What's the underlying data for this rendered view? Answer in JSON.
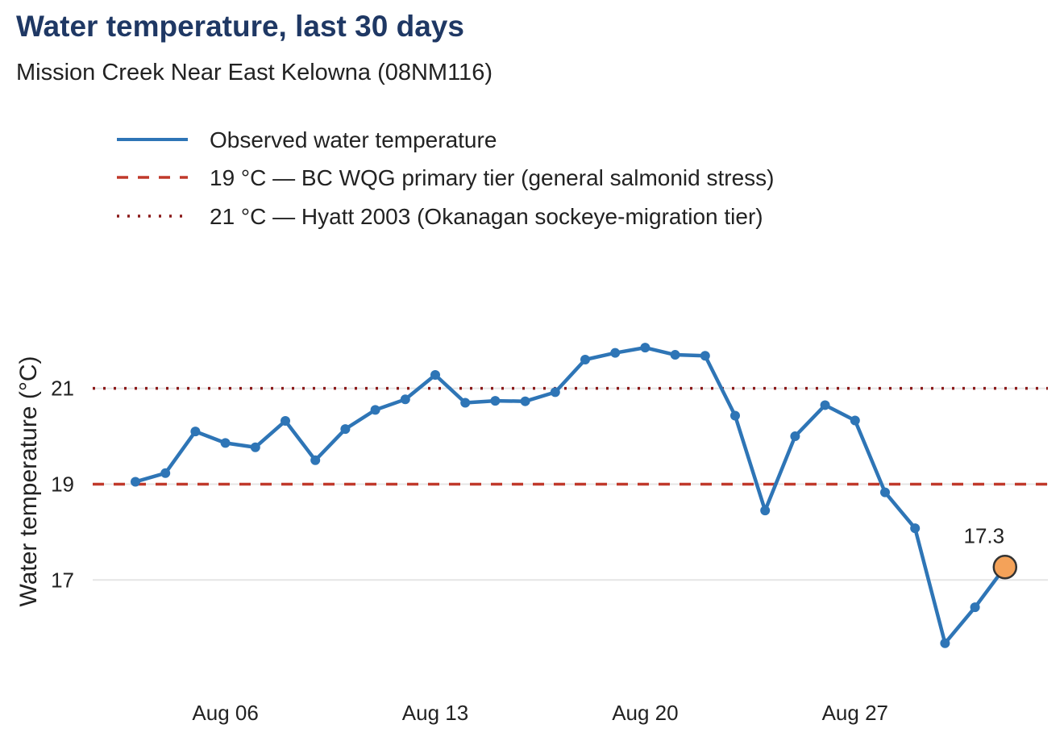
{
  "title": "Water temperature, last 30 days",
  "subtitle": "Mission Creek Near East Kelowna (08NM116)",
  "colors": {
    "title": "#1f3864",
    "series": "#2e75b6",
    "threshold_19": "#c0392b",
    "threshold_21": "#8b1a1a",
    "highlight_fill": "#f4a259",
    "grid": "#e6e6e6"
  },
  "chart_data": {
    "type": "line",
    "title": "Water temperature, last 30 days",
    "subtitle": "Mission Creek Near East Kelowna (08NM116)",
    "xlabel": "",
    "ylabel": "Water temperature (°C)",
    "ylim": [
      14.8,
      23.3
    ],
    "yticks": [
      17,
      19,
      21
    ],
    "xtick_labels": [
      "Aug 06",
      "Aug 13",
      "Aug 20",
      "Aug 27"
    ],
    "xtick_days": [
      6,
      13,
      20,
      27
    ],
    "x_days": [
      3,
      4,
      5,
      6,
      7,
      8,
      9,
      10,
      11,
      12,
      13,
      14,
      15,
      16,
      17,
      18,
      19,
      20,
      21,
      22,
      23,
      24,
      25,
      26,
      27,
      28,
      29,
      30,
      31,
      32
    ],
    "series": [
      {
        "name": "Observed water temperature",
        "values": [
          19.05,
          19.23,
          20.1,
          19.86,
          19.77,
          20.32,
          19.5,
          20.15,
          20.55,
          20.77,
          21.28,
          20.7,
          20.74,
          20.73,
          20.92,
          21.6,
          21.74,
          21.85,
          21.7,
          21.68,
          20.43,
          18.45,
          20.0,
          20.65,
          20.33,
          18.83,
          18.08,
          15.68,
          16.43,
          17.27
        ]
      }
    ],
    "thresholds": [
      {
        "value": 19,
        "label": "19 °C — BC WQG primary tier (general salmonid stress)",
        "style": "dashed"
      },
      {
        "value": 21,
        "label": "21 °C — Hyatt 2003 (Okanagan sockeye-migration tier)",
        "style": "dotted"
      }
    ],
    "annotation": {
      "label": "17.3",
      "day": 32,
      "value": 17.27
    },
    "legend_position": "top-left",
    "grid": "horizontal"
  }
}
